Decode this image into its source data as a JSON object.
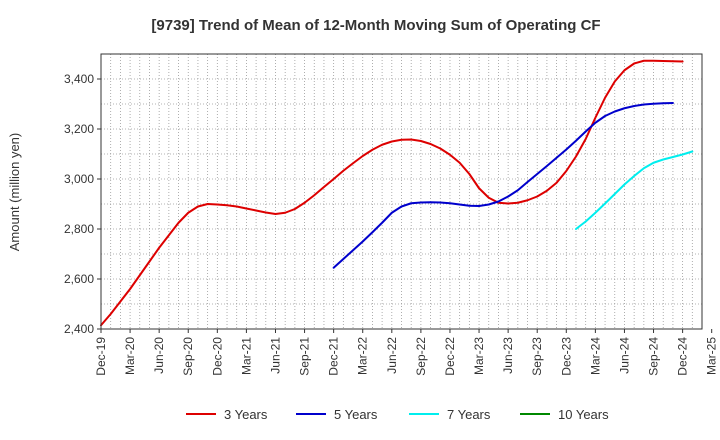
{
  "chart_data": {
    "type": "line",
    "title": "[9739]  Trend of Mean of 12-Month Moving Sum of Operating CF",
    "xlabel": "",
    "ylabel": "Amount (million yen)",
    "ylim": [
      2400,
      3500
    ],
    "yticks": [
      2400,
      2600,
      2800,
      3000,
      3200,
      3400
    ],
    "ytick_labels": [
      "2,400",
      "2,600",
      "2,800",
      "3,000",
      "3,200",
      "3,400"
    ],
    "x_start": "Dec-19",
    "n_months": 63,
    "xtick_labels": [
      "Dec-19",
      "Mar-20",
      "Jun-20",
      "Sep-20",
      "Dec-20",
      "Mar-21",
      "Jun-21",
      "Sep-21",
      "Dec-21",
      "Mar-22",
      "Jun-22",
      "Sep-22",
      "Dec-22",
      "Mar-23",
      "Jun-23",
      "Sep-23",
      "Dec-23",
      "Mar-24",
      "Jun-24",
      "Sep-24",
      "Dec-24",
      "Mar-25"
    ],
    "grid": true,
    "legend_position": "bottom",
    "series": [
      {
        "name": "3 Years",
        "color": "#dd0000",
        "start_index": 0,
        "values": [
          2415,
          2460,
          2510,
          2560,
          2615,
          2670,
          2725,
          2775,
          2825,
          2865,
          2890,
          2900,
          2898,
          2895,
          2890,
          2882,
          2874,
          2866,
          2860,
          2865,
          2880,
          2905,
          2935,
          2968,
          3000,
          3033,
          3063,
          3092,
          3117,
          3137,
          3150,
          3157,
          3158,
          3152,
          3140,
          3122,
          3097,
          3065,
          3020,
          2963,
          2925,
          2905,
          2902,
          2905,
          2915,
          2930,
          2953,
          2985,
          3032,
          3090,
          3160,
          3245,
          3325,
          3390,
          3435,
          3462,
          3473,
          3473,
          3472,
          3471,
          3470
        ]
      },
      {
        "name": "5 Years",
        "color": "#0000cc",
        "start_index": 24,
        "values": [
          2645,
          2680,
          2715,
          2750,
          2787,
          2825,
          2865,
          2890,
          2903,
          2906,
          2907,
          2906,
          2903,
          2898,
          2893,
          2892,
          2898,
          2910,
          2930,
          2955,
          2988,
          3020,
          3052,
          3085,
          3118,
          3153,
          3190,
          3225,
          3252,
          3270,
          3283,
          3292,
          3298,
          3301,
          3303,
          3304
        ]
      },
      {
        "name": "7 Years",
        "color": "#00eeee",
        "start_index": 49,
        "values": [
          2800,
          2830,
          2865,
          2902,
          2940,
          2978,
          3012,
          3043,
          3065,
          3078,
          3088,
          3098,
          3110
        ]
      },
      {
        "name": "10 Years",
        "color": "#008800",
        "start_index": 0,
        "values": []
      }
    ]
  }
}
